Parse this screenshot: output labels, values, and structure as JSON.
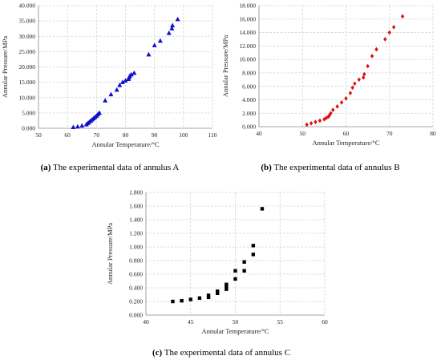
{
  "chart_data": [
    {
      "type": "scatter",
      "marker": "triangle",
      "color": "#1010cc",
      "xlabel": "Annular Temperature/°C",
      "ylabel": "Annular Pressure/MPa",
      "xlim": [
        50,
        110
      ],
      "ylim": [
        0,
        40
      ],
      "xticks": [
        "50",
        "60",
        "70",
        "80",
        "90",
        "100",
        "110"
      ],
      "yticks": [
        "0.000",
        "5.000",
        "10.000",
        "15.000",
        "20.000",
        "25.000",
        "30.000",
        "35.000",
        "40.000"
      ],
      "caption_label": "(a)",
      "caption_text": " The experimental data of annulus A",
      "grid": true,
      "x": [
        62,
        63.5,
        65,
        66.5,
        67,
        67.5,
        68,
        68.5,
        69,
        69.5,
        70,
        70.5,
        71,
        73,
        75,
        77,
        78,
        79,
        80,
        81,
        81.2,
        81.5,
        82,
        83,
        88,
        90,
        92,
        95,
        96,
        96.2,
        98
      ],
      "y": [
        0.3,
        0.5,
        0.8,
        1.2,
        1.6,
        2.0,
        2.4,
        2.8,
        3.2,
        3.6,
        4.0,
        4.5,
        5.0,
        9.0,
        11.0,
        12.5,
        14.0,
        15.0,
        15.5,
        16.0,
        16.5,
        17.0,
        17.5,
        18.0,
        24.0,
        27.0,
        28.5,
        31.0,
        32.5,
        33.5,
        35.5
      ]
    },
    {
      "type": "scatter",
      "marker": "diamond",
      "color": "#dd1111",
      "xlabel": "Annular Temperature/°C",
      "ylabel": "Annular Pressure/MPa",
      "xlim": [
        40,
        80
      ],
      "ylim": [
        0,
        18
      ],
      "xticks": [
        "40",
        "50",
        "60",
        "70",
        "80"
      ],
      "yticks": [
        "0.000",
        "2.000",
        "4.000",
        "6.000",
        "8.000",
        "10.000",
        "12.000",
        "14.000",
        "16.000",
        "18.000"
      ],
      "caption_label": "(b)",
      "caption_text": " The experimental data of annulus B",
      "grid": true,
      "x": [
        51,
        52,
        53,
        54,
        55,
        55.5,
        56,
        56.2,
        56.5,
        57,
        58,
        59,
        60,
        61,
        61.5,
        62,
        63,
        64,
        64.2,
        65,
        66,
        67,
        69,
        70,
        71,
        73
      ],
      "y": [
        0.3,
        0.5,
        0.7,
        0.9,
        1.1,
        1.3,
        1.5,
        1.7,
        2.0,
        2.5,
        3.0,
        3.6,
        4.2,
        5.0,
        5.8,
        6.4,
        7.0,
        7.3,
        7.8,
        9.0,
        10.5,
        11.5,
        13.0,
        14.0,
        14.8,
        16.4
      ]
    },
    {
      "type": "scatter",
      "marker": "square",
      "color": "#000000",
      "xlabel": "Annular Temperature/°C",
      "ylabel": "Annular Pressure/MPa",
      "xlim": [
        40,
        60
      ],
      "ylim": [
        0,
        1.8
      ],
      "xticks": [
        "40",
        "45",
        "50",
        "55",
        "60"
      ],
      "yticks": [
        "0.000",
        "0.200",
        "0.400",
        "0.600",
        "0.800",
        "1.000",
        "1.200",
        "1.400",
        "1.600",
        "1.800"
      ],
      "caption_label": "(c)",
      "caption_text": " The experimental data of annulus C",
      "grid": true,
      "x": [
        43,
        44,
        45,
        46,
        47,
        47,
        48,
        48,
        49,
        49,
        49,
        50,
        50,
        51,
        51,
        52,
        52,
        53
      ],
      "y": [
        0.2,
        0.21,
        0.23,
        0.25,
        0.26,
        0.29,
        0.32,
        0.35,
        0.38,
        0.42,
        0.45,
        0.53,
        0.65,
        0.65,
        0.78,
        0.89,
        1.02,
        1.56
      ]
    }
  ]
}
